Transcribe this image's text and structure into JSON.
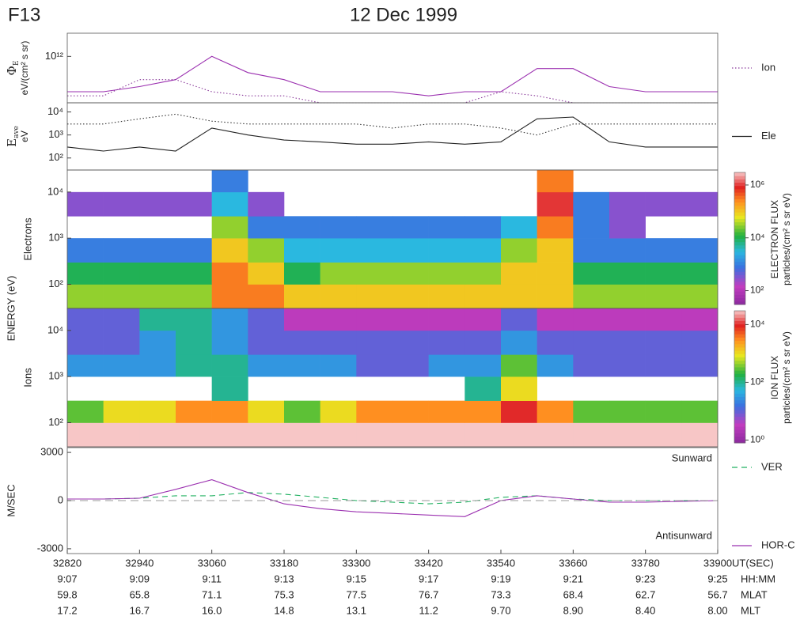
{
  "header": {
    "satellite": "F13",
    "date": "12 Dec 1999",
    "energy_label": "ENERGY (eV)"
  },
  "time_axis": {
    "xlim": [
      32820,
      33900
    ],
    "xticks": [
      32820,
      32940,
      33060,
      33180,
      33300,
      33420,
      33540,
      33660,
      33780,
      33900
    ],
    "unit": "UT(SEC)",
    "rows": [
      {
        "name": "HH:MM",
        "labels": [
          "9:07",
          "9:09",
          "9:11",
          "9:13",
          "9:15",
          "9:17",
          "9:19",
          "9:21",
          "9:23",
          "9:25"
        ]
      },
      {
        "name": "MLAT",
        "labels": [
          "59.8",
          "65.8",
          "71.1",
          "75.3",
          "77.5",
          "76.7",
          "73.3",
          "68.4",
          "62.7",
          "56.7"
        ]
      },
      {
        "name": "MLT",
        "labels": [
          "17.2",
          "16.7",
          "16.0",
          "14.8",
          "13.1",
          "11.2",
          "9.70",
          "8.90",
          "8.40",
          "8.00"
        ]
      }
    ]
  },
  "chart_data": [
    {
      "type": "line",
      "y_symbol": "Φ",
      "y_symbol_sub": "E",
      "y_label": "eV/(cm² s sr)",
      "yscale": "log",
      "ylim": [
        10000000000.0,
        10000000000000.0
      ],
      "yticks": [
        {
          "value": 1000000000000.0,
          "label": "10¹²"
        }
      ],
      "x": [
        32820,
        32880,
        32940,
        33000,
        33060,
        33120,
        33180,
        33240,
        33300,
        33360,
        33420,
        33480,
        33540,
        33600,
        33660,
        33720,
        33780,
        33840,
        33900
      ],
      "series": [
        {
          "color": "#9b30b0",
          "dash": "solid",
          "values": [
            30000000000.0,
            30000000000.0,
            50000000000.0,
            100000000000.0,
            1000000000000.0,
            200000000000.0,
            100000000000.0,
            30000000000.0,
            30000000000.0,
            30000000000.0,
            20000000000.0,
            30000000000.0,
            30000000000.0,
            300000000000.0,
            300000000000.0,
            50000000000.0,
            30000000000.0,
            30000000000.0,
            30000000000.0
          ]
        },
        {
          "name": "Ion",
          "color": "#8a3a9a",
          "dash": "dotted",
          "values": [
            20000000000.0,
            20000000000.0,
            100000000000.0,
            100000000000.0,
            30000000000.0,
            20000000000.0,
            20000000000.0,
            10000000000.0,
            10000000000.0,
            10000000000.0,
            10000000000.0,
            10000000000.0,
            30000000000.0,
            20000000000.0,
            10000000000.0,
            10000000000.0,
            10000000000.0,
            10000000000.0,
            10000000000.0
          ]
        }
      ]
    },
    {
      "type": "line",
      "y_symbol": "E",
      "y_symbol_sub": "ave",
      "y_label": "eV",
      "yscale": "log",
      "ylim": [
        30,
        25000
      ],
      "yticks": [
        {
          "value": 100,
          "label": "10²"
        },
        {
          "value": 1000,
          "label": "10³"
        },
        {
          "value": 10000,
          "label": "10⁴"
        }
      ],
      "x": [
        32820,
        32880,
        32940,
        33000,
        33060,
        33120,
        33180,
        33240,
        33300,
        33360,
        33420,
        33480,
        33540,
        33600,
        33660,
        33720,
        33780,
        33840,
        33900
      ],
      "series": [
        {
          "name": "Ele",
          "color": "#222222",
          "dash": "solid",
          "values": [
            300,
            200,
            300,
            200,
            2000,
            1000,
            600,
            500,
            400,
            400,
            500,
            400,
            500,
            5000,
            6000,
            500,
            300,
            300,
            300
          ]
        },
        {
          "color": "#333333",
          "dash": "dotted",
          "values": [
            3000,
            3000,
            5000,
            8000,
            4000,
            3000,
            3000,
            3000,
            3000,
            2000,
            3000,
            3000,
            2000,
            1000,
            3000,
            3000,
            3000,
            3000,
            3000
          ]
        }
      ]
    },
    {
      "type": "heatmap",
      "y_label": "Electrons",
      "yscale": "log",
      "ylim": [
        30,
        30000
      ],
      "yticks": [
        {
          "value": 100,
          "label": "10²"
        },
        {
          "value": 1000,
          "label": "10³"
        },
        {
          "value": 10000,
          "label": "10⁴"
        }
      ],
      "colorbar_label": "ELECTRON FLUX",
      "colorbar_units": "particles/(cm² s sr eV)",
      "zlim": [
        30,
        3000000.0
      ],
      "zticks": [
        {
          "value": 100,
          "label": "10²"
        },
        {
          "value": 10000,
          "label": "10⁴"
        },
        {
          "value": 1000000.0,
          "label": "10⁶"
        }
      ],
      "x_edges": [
        32820,
        32880,
        32940,
        33000,
        33060,
        33120,
        33180,
        33240,
        33300,
        33360,
        33420,
        33480,
        33540,
        33600,
        33660,
        33720,
        33780,
        33840,
        33900
      ],
      "y_edges": [
        30,
        100,
        300,
        1000,
        3000,
        10000,
        30000
      ],
      "z": [
        [
          30000.0,
          30000.0,
          30000.0,
          30000.0,
          300000.0,
          300000.0,
          100000.0,
          100000.0,
          100000.0,
          100000.0,
          100000.0,
          100000.0,
          100000.0,
          100000.0,
          30000.0,
          30000.0,
          30000.0,
          30000.0
        ],
        [
          10000.0,
          10000.0,
          10000.0,
          10000.0,
          300000.0,
          100000.0,
          10000.0,
          30000.0,
          30000.0,
          30000.0,
          30000.0,
          30000.0,
          100000.0,
          100000.0,
          10000.0,
          10000.0,
          10000.0,
          10000.0
        ],
        [
          1000.0,
          1000.0,
          1000.0,
          1000.0,
          100000.0,
          30000.0,
          3000.0,
          3000.0,
          3000.0,
          3000.0,
          3000.0,
          3000.0,
          30000.0,
          100000.0,
          1000.0,
          1000.0,
          1000.0,
          1000.0
        ],
        [
          null,
          null,
          null,
          null,
          30000.0,
          1000.0,
          1000.0,
          1000.0,
          1000.0,
          1000.0,
          1000.0,
          1000.0,
          3000.0,
          300000.0,
          1000.0,
          300,
          null,
          null
        ],
        [
          300,
          300,
          300,
          300,
          3000.0,
          300,
          null,
          null,
          null,
          null,
          null,
          null,
          null,
          1000000.0,
          1000.0,
          300,
          300,
          300
        ],
        [
          null,
          null,
          null,
          null,
          1000.0,
          null,
          null,
          null,
          null,
          null,
          null,
          null,
          null,
          300000.0,
          null,
          null,
          null,
          null
        ]
      ]
    },
    {
      "type": "heatmap",
      "y_label": "Ions",
      "yscale": "log",
      "ylim": [
        30,
        30000
      ],
      "yticks": [
        {
          "value": 100,
          "label": "10²"
        },
        {
          "value": 1000,
          "label": "10³"
        },
        {
          "value": 10000,
          "label": "10⁴"
        }
      ],
      "colorbar_label": "ION FLUX",
      "colorbar_units": "particles/(cm² s sr eV)",
      "zlim": [
        0.8,
        30000.0
      ],
      "zticks": [
        {
          "value": 1,
          "label": "10⁰"
        },
        {
          "value": 100,
          "label": "10²"
        },
        {
          "value": 10000,
          "label": "10⁴"
        }
      ],
      "x_edges": [
        32820,
        32880,
        32940,
        33000,
        33060,
        33120,
        33180,
        33240,
        33300,
        33360,
        33420,
        33480,
        33540,
        33600,
        33660,
        33720,
        33780,
        33840,
        33900
      ],
      "y_edges": [
        30,
        100,
        300,
        1000,
        3000,
        10000,
        30000
      ],
      "z": [
        [
          30000.0,
          30000.0,
          30000.0,
          30000.0,
          30000.0,
          30000.0,
          30000.0,
          30000.0,
          30000.0,
          30000.0,
          30000.0,
          30000.0,
          30000.0,
          30000.0,
          30000.0,
          30000.0,
          30000.0,
          30000.0
        ],
        [
          300,
          1000.0,
          1000.0,
          3000.0,
          3000.0,
          1000.0,
          300,
          1000.0,
          3000.0,
          3000.0,
          3000.0,
          3000.0,
          10000.0,
          3000.0,
          300,
          300,
          300,
          300
        ],
        [
          null,
          null,
          null,
          null,
          100,
          null,
          null,
          null,
          null,
          null,
          null,
          100,
          1000.0,
          null,
          null,
          null,
          null,
          null
        ],
        [
          30,
          30,
          30,
          100,
          100,
          30,
          30,
          30,
          10,
          10,
          30,
          30,
          300,
          30,
          10,
          10,
          10,
          10
        ],
        [
          10,
          10,
          30,
          100,
          30,
          10,
          10,
          10,
          10,
          10,
          10,
          10,
          30,
          10,
          10,
          10,
          10,
          10
        ],
        [
          10,
          10,
          100,
          100,
          30,
          10,
          3,
          3,
          3,
          3,
          3,
          3,
          10,
          3,
          3,
          3,
          3,
          3
        ]
      ]
    },
    {
      "type": "line",
      "y_label": "M/SEC",
      "yscale": "linear",
      "ylim": [
        -3300,
        3300
      ],
      "yticks": [
        3000,
        0,
        -3000
      ],
      "annotations": [
        "Sunward",
        "Antisunward"
      ],
      "x": [
        32820,
        32880,
        32940,
        33000,
        33060,
        33120,
        33180,
        33240,
        33300,
        33360,
        33420,
        33480,
        33540,
        33600,
        33660,
        33720,
        33780,
        33840,
        33900
      ],
      "series": [
        {
          "name": "VER",
          "color": "#20b060",
          "dash": "dashed",
          "values": [
            100,
            100,
            150,
            300,
            300,
            500,
            400,
            200,
            0,
            -100,
            -200,
            -100,
            200,
            300,
            100,
            0,
            0,
            0,
            0
          ]
        },
        {
          "name": "HOR-C",
          "color": "#9b30b0",
          "dash": "solid",
          "values": [
            100,
            100,
            150,
            700,
            1300,
            500,
            -200,
            -500,
            -700,
            -800,
            -900,
            -1000,
            0,
            300,
            100,
            -100,
            -100,
            -50,
            0
          ]
        }
      ]
    }
  ]
}
